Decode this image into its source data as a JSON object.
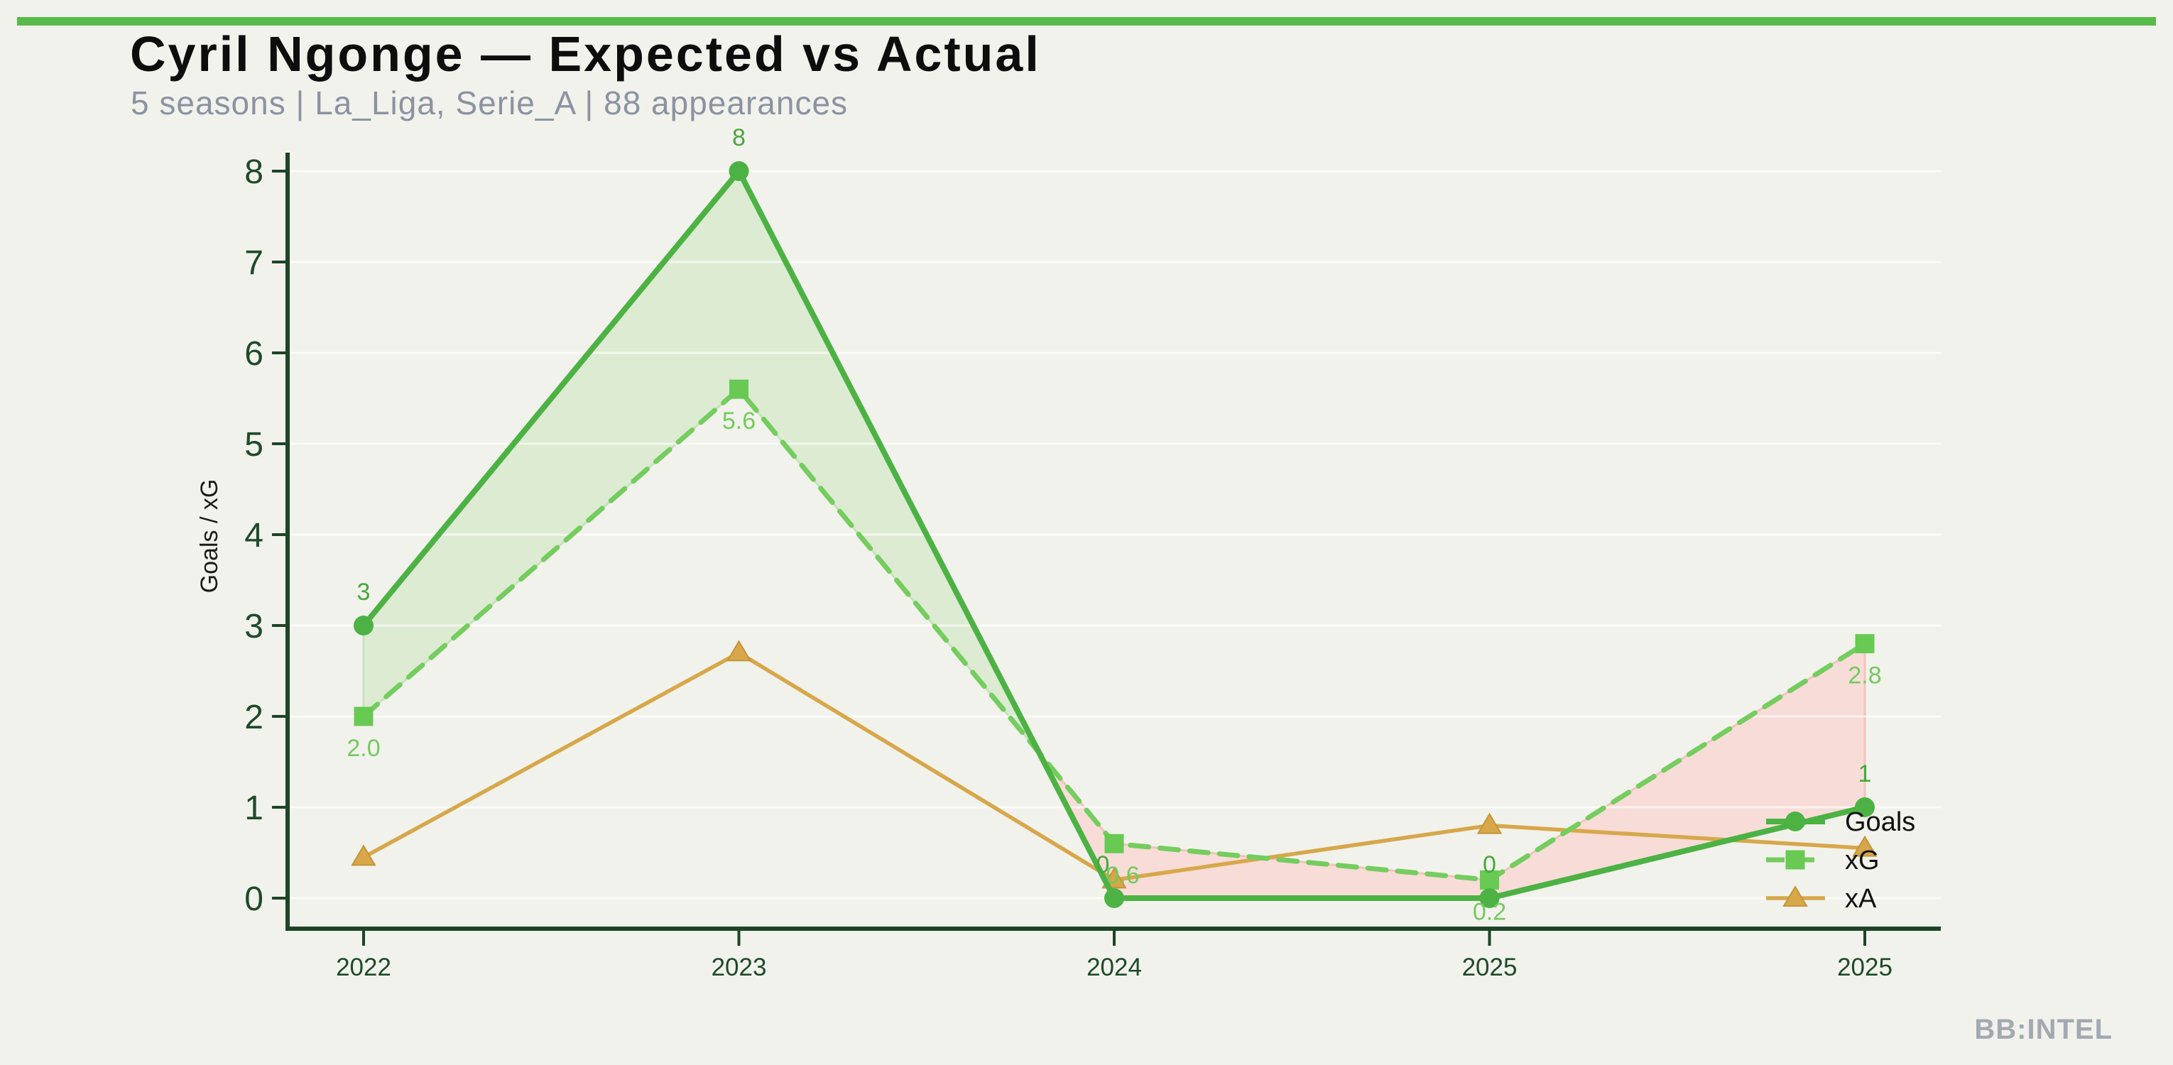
{
  "page": {
    "background": "#f2f2ec",
    "accent_bar_color": "#58ba4b"
  },
  "header": {
    "title": "Cyril Ngonge — Expected vs Actual",
    "subtitle": "5 seasons | La_Liga, Serie_A | 88 appearances"
  },
  "watermark": "BB:INTEL",
  "chart_data": {
    "type": "line",
    "title": "Cyril Ngonge — Expected vs Actual",
    "xlabel": "",
    "ylabel": "Goals / xG",
    "categories": [
      "2022",
      "2023",
      "2024",
      "2025",
      "2025"
    ],
    "ylim": [
      0,
      8
    ],
    "yticks": [
      0,
      1,
      2,
      3,
      4,
      5,
      6,
      7,
      8
    ],
    "grid": "faint horizontal white lines at integer values",
    "legend_position": "lower-right inside plot, no frame",
    "series": [
      {
        "name": "Goals",
        "values": [
          3,
          8,
          0,
          0,
          1
        ],
        "color": "#4cb244",
        "marker": "circle",
        "line": "solid",
        "data_labels": [
          "3",
          "8",
          "0",
          "0",
          "1"
        ],
        "label_color": "#45a93c",
        "label_position": "above"
      },
      {
        "name": "xG",
        "values": [
          2.0,
          5.6,
          0.6,
          0.2,
          2.8
        ],
        "color": "#74cd5e",
        "marker": "square",
        "marker_fill": "#68c953",
        "line": "dashed",
        "data_labels": [
          "2.0",
          "5.6",
          "0.6",
          "0.2",
          "2.8"
        ],
        "label_color": "#74ca5f",
        "label_position": "below"
      },
      {
        "name": "xA",
        "values": [
          0.45,
          2.7,
          0.2,
          0.8,
          0.55
        ],
        "color": "#d7a74a",
        "marker": "triangle",
        "marker_edge": "#c3953a",
        "line": "solid",
        "data_labels": null,
        "label_position": null
      }
    ],
    "fills": {
      "between": [
        "Goals",
        "xG"
      ],
      "overperformance_fill": "#ddebd2",
      "overperformance_edge": "#c8e2bc",
      "underperformance_fill": "#f8dcd8",
      "underperformance_edge": "#f3c3bd"
    },
    "axis": {
      "spine_color": "#1d4427",
      "tick_color": "#1d4427",
      "tick_label_color": "#1e4a2a",
      "ylabel_color": "#1b1b1b",
      "gridline_color": "rgba(255,255,255,0.65)"
    }
  }
}
